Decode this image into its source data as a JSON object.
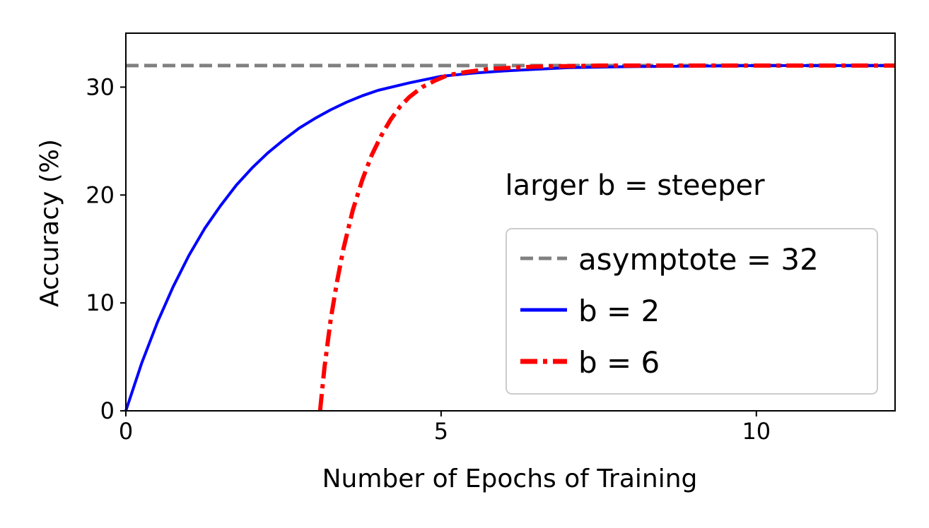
{
  "chart_data": {
    "type": "line",
    "xlabel": "Number of Epochs of Training",
    "ylabel": "Accuracy (%)",
    "xlim": [
      0,
      12.2
    ],
    "ylim": [
      0,
      35
    ],
    "x_ticks": [
      0,
      5,
      10
    ],
    "y_ticks": [
      0,
      10,
      20,
      30
    ],
    "grid": false,
    "legend_position": "lower-right",
    "annotation": "larger b = steeper",
    "asymptote": {
      "name": "asymptote = 32",
      "y": 32,
      "color": "#808080",
      "style": "dashed"
    },
    "series": [
      {
        "name": "b = 2",
        "color": "#0000ff",
        "style": "solid",
        "points": [
          [
            0,
            0
          ],
          [
            0.25,
            4.4
          ],
          [
            0.5,
            8.2
          ],
          [
            0.75,
            11.5
          ],
          [
            1.0,
            14.4
          ],
          [
            1.25,
            16.9
          ],
          [
            1.5,
            19.0
          ],
          [
            1.75,
            20.9
          ],
          [
            2.0,
            22.5
          ],
          [
            2.25,
            23.9
          ],
          [
            2.5,
            25.1
          ],
          [
            2.75,
            26.2
          ],
          [
            3.0,
            27.1
          ],
          [
            3.25,
            27.9
          ],
          [
            3.5,
            28.6
          ],
          [
            3.75,
            29.2
          ],
          [
            4.0,
            29.7
          ],
          [
            4.5,
            30.4
          ],
          [
            5.0,
            31.0
          ],
          [
            5.5,
            31.3
          ],
          [
            6.0,
            31.5
          ],
          [
            7.0,
            31.8
          ],
          [
            8.0,
            31.9
          ],
          [
            10.0,
            32.0
          ],
          [
            12.2,
            32.0
          ]
        ]
      },
      {
        "name": "b = 6",
        "color": "#ff0000",
        "style": "dashdot",
        "points": [
          [
            3.08,
            0
          ],
          [
            3.15,
            4.0
          ],
          [
            3.25,
            8.5
          ],
          [
            3.35,
            12.0
          ],
          [
            3.45,
            15.0
          ],
          [
            3.6,
            18.6
          ],
          [
            3.75,
            21.4
          ],
          [
            3.9,
            23.7
          ],
          [
            4.05,
            25.5
          ],
          [
            4.2,
            27.0
          ],
          [
            4.35,
            28.2
          ],
          [
            4.5,
            29.1
          ],
          [
            4.7,
            30.0
          ],
          [
            4.9,
            30.6
          ],
          [
            5.1,
            31.1
          ],
          [
            5.4,
            31.4
          ],
          [
            5.8,
            31.7
          ],
          [
            6.5,
            31.9
          ],
          [
            7.5,
            32.0
          ],
          [
            12.2,
            32.0
          ]
        ]
      }
    ]
  }
}
